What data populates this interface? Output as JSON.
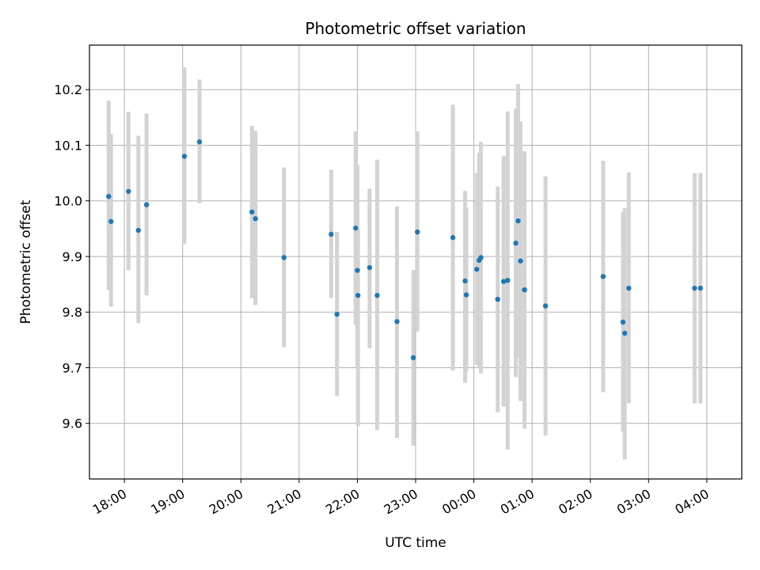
{
  "chart_data": {
    "type": "scatter",
    "title": "Photometric offset variation",
    "xlabel": "UTC time",
    "ylabel": "Photometric offset",
    "grid": true,
    "x_axis": {
      "unit": "hours",
      "range": [
        17.4,
        28.6
      ],
      "ticks": [
        18,
        19,
        20,
        21,
        22,
        23,
        24,
        25,
        26,
        27,
        28
      ],
      "tick_labels": [
        "18:00",
        "19:00",
        "20:00",
        "21:00",
        "22:00",
        "23:00",
        "00:00",
        "01:00",
        "02:00",
        "03:00",
        "04:00"
      ]
    },
    "y_axis": {
      "range": [
        9.5,
        10.28
      ],
      "ticks": [
        9.6,
        9.7,
        9.8,
        9.9,
        10.0,
        10.1,
        10.2
      ],
      "tick_labels": [
        "9.6",
        "9.7",
        "9.8",
        "9.9",
        "10.0",
        "10.1",
        "10.2"
      ]
    },
    "colors": {
      "points": "#1f77b4",
      "errorbars": "#d3d3d3",
      "grid": "#b0b0b0"
    },
    "points": [
      {
        "x": 17.73,
        "y": 10.008,
        "lo": 9.84,
        "hi": 10.18
      },
      {
        "x": 17.77,
        "y": 9.963,
        "lo": 9.81,
        "hi": 10.12
      },
      {
        "x": 18.07,
        "y": 10.017,
        "lo": 9.875,
        "hi": 10.16
      },
      {
        "x": 18.24,
        "y": 9.947,
        "lo": 9.78,
        "hi": 10.117
      },
      {
        "x": 18.38,
        "y": 9.993,
        "lo": 9.83,
        "hi": 10.157
      },
      {
        "x": 19.03,
        "y": 10.08,
        "lo": 9.922,
        "hi": 10.24
      },
      {
        "x": 19.29,
        "y": 10.106,
        "lo": 9.996,
        "hi": 10.218
      },
      {
        "x": 20.19,
        "y": 9.98,
        "lo": 9.825,
        "hi": 10.135
      },
      {
        "x": 20.25,
        "y": 9.968,
        "lo": 9.813,
        "hi": 10.126
      },
      {
        "x": 20.74,
        "y": 9.898,
        "lo": 9.737,
        "hi": 10.06
      },
      {
        "x": 21.55,
        "y": 9.94,
        "lo": 9.825,
        "hi": 10.056
      },
      {
        "x": 21.65,
        "y": 9.796,
        "lo": 9.649,
        "hi": 9.944
      },
      {
        "x": 21.97,
        "y": 9.951,
        "lo": 9.777,
        "hi": 10.125
      },
      {
        "x": 22.0,
        "y": 9.875,
        "lo": 9.7,
        "hi": 10.065
      },
      {
        "x": 22.01,
        "y": 9.83,
        "lo": 9.595,
        "hi": 9.95
      },
      {
        "x": 22.21,
        "y": 9.88,
        "lo": 9.735,
        "hi": 10.022
      },
      {
        "x": 22.34,
        "y": 9.83,
        "lo": 9.588,
        "hi": 10.074
      },
      {
        "x": 22.68,
        "y": 9.783,
        "lo": 9.574,
        "hi": 9.99
      },
      {
        "x": 22.96,
        "y": 9.718,
        "lo": 9.56,
        "hi": 9.876
      },
      {
        "x": 23.03,
        "y": 9.944,
        "lo": 9.765,
        "hi": 10.125
      },
      {
        "x": 23.64,
        "y": 9.934,
        "lo": 9.695,
        "hi": 10.173
      },
      {
        "x": 23.85,
        "y": 9.856,
        "lo": 9.673,
        "hi": 10.018
      },
      {
        "x": 23.87,
        "y": 9.831,
        "lo": 9.693,
        "hi": 9.988
      },
      {
        "x": 24.05,
        "y": 9.877,
        "lo": 9.705,
        "hi": 10.05
      },
      {
        "x": 24.09,
        "y": 9.893,
        "lo": 9.7,
        "hi": 10.086
      },
      {
        "x": 24.12,
        "y": 9.898,
        "lo": 9.69,
        "hi": 10.106
      },
      {
        "x": 24.41,
        "y": 9.823,
        "lo": 9.62,
        "hi": 10.026
      },
      {
        "x": 24.51,
        "y": 9.855,
        "lo": 9.63,
        "hi": 10.081
      },
      {
        "x": 24.58,
        "y": 9.857,
        "lo": 9.553,
        "hi": 10.161
      },
      {
        "x": 24.72,
        "y": 9.924,
        "lo": 9.683,
        "hi": 10.166
      },
      {
        "x": 24.76,
        "y": 9.964,
        "lo": 9.718,
        "hi": 10.21
      },
      {
        "x": 24.8,
        "y": 9.892,
        "lo": 9.64,
        "hi": 10.143
      },
      {
        "x": 24.87,
        "y": 9.84,
        "lo": 9.59,
        "hi": 10.089
      },
      {
        "x": 25.23,
        "y": 9.811,
        "lo": 9.578,
        "hi": 10.044
      },
      {
        "x": 26.22,
        "y": 9.864,
        "lo": 9.656,
        "hi": 10.072
      },
      {
        "x": 26.56,
        "y": 9.782,
        "lo": 9.585,
        "hi": 9.98
      },
      {
        "x": 26.59,
        "y": 9.762,
        "lo": 9.535,
        "hi": 9.987
      },
      {
        "x": 26.66,
        "y": 9.843,
        "lo": 9.636,
        "hi": 10.051
      },
      {
        "x": 27.79,
        "y": 9.843,
        "lo": 9.636,
        "hi": 10.05
      },
      {
        "x": 27.89,
        "y": 9.843,
        "lo": 9.636,
        "hi": 10.05
      }
    ]
  }
}
